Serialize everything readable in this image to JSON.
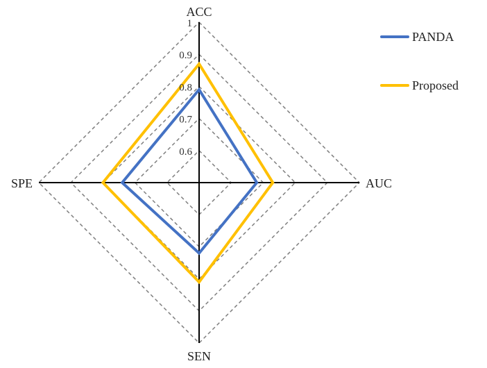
{
  "chart_data": {
    "type": "radar",
    "axes": [
      "ACC",
      "AUC",
      "SEN",
      "SPE"
    ],
    "range": [
      0.5,
      1.0
    ],
    "ticks": [
      "0.6",
      "0.7",
      "0.8",
      "0.9",
      "1"
    ],
    "tick_values": [
      0.6,
      0.7,
      0.8,
      0.9,
      1.0
    ],
    "grid": "dashed",
    "legend_position": "top-right",
    "series": [
      {
        "name": "PANDA",
        "color": "#4472C4",
        "values": [
          0.79,
          0.68,
          0.72,
          0.74
        ]
      },
      {
        "name": "Proposed",
        "color": "#FFC000",
        "values": [
          0.87,
          0.73,
          0.81,
          0.8
        ]
      }
    ]
  }
}
